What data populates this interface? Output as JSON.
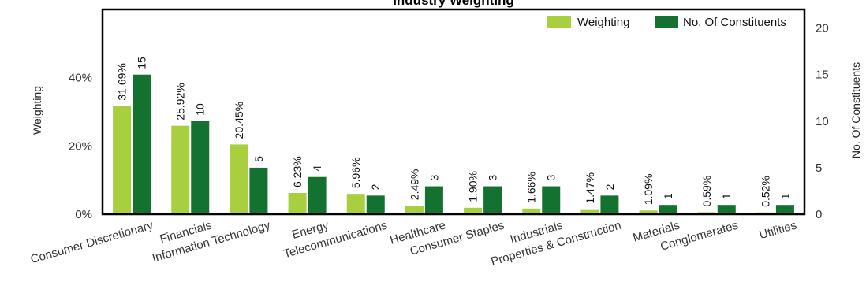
{
  "chart_data": {
    "type": "bar",
    "title": "Industry Weighting",
    "categories": [
      "Consumer Discretionary",
      "Financials",
      "Information Technology",
      "Energy",
      "Telecommunications",
      "Healthcare",
      "Consumer Staples",
      "Industrials",
      "Properties & Construction",
      "Materials",
      "Conglomerates",
      "Utilities"
    ],
    "series": [
      {
        "name": "Weighting",
        "axis": "left",
        "color": "#a8cf3e",
        "values": [
          31.69,
          25.92,
          20.45,
          6.23,
          5.96,
          2.49,
          1.9,
          1.66,
          1.47,
          1.09,
          0.59,
          0.52
        ],
        "labels": [
          "31.69%",
          "25.92%",
          "20.45%",
          "6.23%",
          "5.96%",
          "2.49%",
          "1.90%",
          "1.66%",
          "1.47%",
          "1.09%",
          "0.59%",
          "0.52%"
        ]
      },
      {
        "name": "No. Of Constituents",
        "axis": "right",
        "color": "#13722f",
        "values": [
          15,
          10,
          5,
          4,
          2,
          3,
          3,
          3,
          2,
          1,
          1,
          1
        ],
        "labels": [
          "15",
          "10",
          "5",
          "4",
          "2",
          "3",
          "3",
          "3",
          "2",
          "1",
          "1",
          "1"
        ]
      }
    ],
    "y_left": {
      "label": "Weighting",
      "range": [
        0,
        60
      ],
      "ticks": [
        0,
        20,
        40
      ],
      "tick_labels": [
        "0%",
        "20%",
        "40%"
      ]
    },
    "y_right": {
      "label": "No. Of Constituents",
      "range": [
        0,
        22
      ],
      "ticks": [
        0,
        5,
        10,
        15,
        20
      ],
      "tick_labels": [
        "0",
        "5",
        "10",
        "15",
        "20"
      ]
    },
    "legend": {
      "position": "top-right",
      "items": [
        "Weighting",
        "No. Of Constituents"
      ]
    },
    "grid": false
  }
}
